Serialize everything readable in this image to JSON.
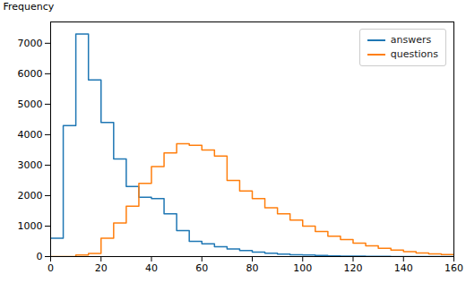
{
  "chart_data": {
    "type": "histogram",
    "bins": [
      0,
      5,
      10,
      15,
      20,
      25,
      30,
      35,
      40,
      45,
      50,
      55,
      60,
      65,
      70,
      75,
      80,
      85,
      90,
      95,
      100,
      105,
      110,
      115,
      120,
      125,
      130,
      135,
      140,
      145,
      150,
      155,
      160
    ],
    "series": [
      {
        "name": "answers",
        "color": "#1f77b4",
        "values": [
          600,
          4300,
          7300,
          5800,
          4400,
          3200,
          2300,
          1950,
          1900,
          1400,
          850,
          500,
          420,
          320,
          250,
          200,
          150,
          110,
          80,
          60,
          50,
          35,
          25,
          18,
          12,
          8,
          5,
          3,
          2,
          1,
          0,
          0
        ]
      },
      {
        "name": "questions",
        "color": "#ff7f0e",
        "values": [
          0,
          0,
          50,
          100,
          600,
          1100,
          1650,
          2400,
          2950,
          3400,
          3700,
          3650,
          3500,
          3300,
          2500,
          2150,
          1900,
          1600,
          1400,
          1200,
          1000,
          820,
          670,
          560,
          440,
          350,
          270,
          210,
          160,
          120,
          90,
          65
        ]
      }
    ],
    "ylabel": "Frequency",
    "xlim": [
      0,
      160
    ],
    "ylim": [
      0,
      7700
    ],
    "yticks": [
      0,
      1000,
      2000,
      3000,
      4000,
      5000,
      6000,
      7000
    ],
    "xticks": [
      0,
      20,
      40,
      60,
      80,
      100,
      120,
      140,
      160
    ],
    "legend": "upper right"
  }
}
